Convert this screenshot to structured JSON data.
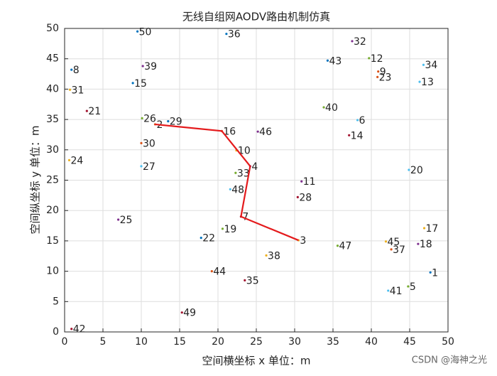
{
  "chart_data": {
    "type": "scatter",
    "title": "无线自组网AODV路由机制仿真",
    "xlabel": "空间横坐标 x  单位：m",
    "ylabel": "空间纵坐标 y  单位：m",
    "watermark": "CSDN @海神之光",
    "xlim": [
      0,
      50
    ],
    "ylim": [
      0,
      50
    ],
    "xticks": [
      0,
      5,
      10,
      15,
      20,
      25,
      30,
      35,
      40,
      45,
      50
    ],
    "yticks": [
      0,
      5,
      10,
      15,
      20,
      25,
      30,
      35,
      40,
      45,
      50
    ],
    "grid": true,
    "point_colors": [
      "#0072bd",
      "#d95319",
      "#edb120",
      "#7e2f8e",
      "#77ac30",
      "#4dbeee",
      "#a2142f"
    ],
    "series": [
      {
        "labels": [
          "1",
          "2",
          "3",
          "4",
          "5",
          "6",
          "7",
          "8",
          "9",
          "10",
          "11",
          "12",
          "13",
          "14",
          "15",
          "16",
          "17",
          "18",
          "19",
          "20",
          "21",
          "22",
          "23",
          "24",
          "25",
          "26",
          "27",
          "28",
          "29",
          "30",
          "31",
          "32",
          "33",
          "34",
          "35",
          "36",
          "37",
          "38",
          "39",
          "40",
          "41",
          "42",
          "43",
          "44",
          "45",
          "46",
          "47",
          "48",
          "49",
          "50"
        ],
        "x": [
          47.7,
          11.8,
          30.5,
          24.2,
          44.8,
          38.2,
          23.0,
          0.9,
          40.9,
          22.4,
          30.9,
          39.7,
          46.3,
          37.1,
          8.9,
          20.5,
          46.9,
          46.1,
          20.6,
          44.9,
          2.9,
          17.8,
          40.8,
          0.6,
          7.0,
          10.1,
          10.0,
          30.4,
          13.5,
          10.0,
          0.7,
          37.5,
          22.3,
          46.8,
          23.5,
          21.1,
          42.6,
          26.3,
          10.2,
          33.8,
          42.2,
          0.9,
          34.3,
          19.2,
          41.9,
          25.2,
          35.6,
          21.6,
          15.3,
          9.5
        ],
        "y": [
          9.8,
          34.2,
          15.1,
          27.3,
          7.5,
          34.9,
          19.0,
          43.2,
          42.9,
          29.9,
          24.8,
          45.1,
          41.2,
          32.4,
          41.0,
          33.1,
          17.1,
          14.5,
          17.0,
          26.7,
          36.4,
          15.5,
          42.0,
          28.3,
          18.5,
          35.2,
          27.3,
          22.2,
          34.7,
          31.1,
          39.9,
          47.9,
          26.2,
          44.0,
          8.5,
          49.1,
          13.6,
          12.6,
          43.8,
          37.0,
          6.8,
          0.5,
          44.7,
          10.0,
          14.9,
          33.0,
          14.2,
          23.5,
          3.2,
          49.5
        ]
      }
    ],
    "route": {
      "color": "#e41a1c",
      "x": [
        11.8,
        20.5,
        24.2,
        23.0,
        30.5
      ],
      "y": [
        34.2,
        33.1,
        27.3,
        19.0,
        15.1
      ]
    }
  }
}
